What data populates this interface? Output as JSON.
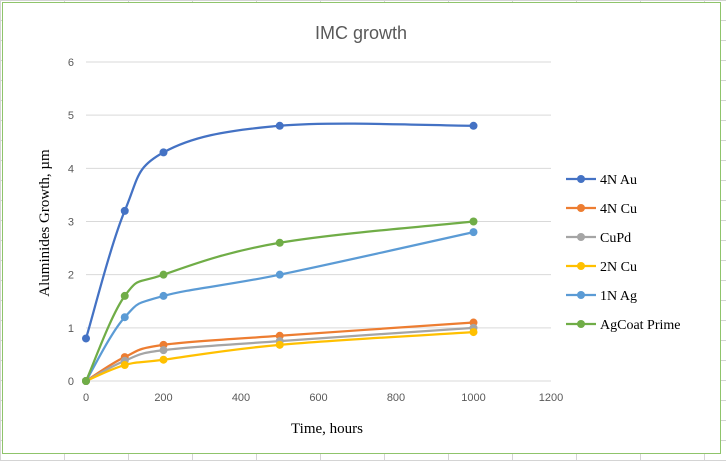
{
  "chart_data": {
    "type": "line",
    "title": "IMC growth",
    "xlabel": "Time, hours",
    "ylabel": "Aluminides Growth, µm",
    "xlim": [
      0,
      1200
    ],
    "ylim": [
      0,
      6
    ],
    "x_ticks": [
      0,
      200,
      400,
      600,
      800,
      1000,
      1200
    ],
    "y_ticks": [
      0,
      1,
      2,
      3,
      4,
      5,
      6
    ],
    "grid": "horizontal",
    "legend_position": "right",
    "smooth": true,
    "series": [
      {
        "name": "4N Au",
        "color": "#4472C4",
        "x": [
          0,
          100,
          200,
          500,
          1000
        ],
        "y": [
          0.8,
          3.2,
          4.3,
          4.8,
          4.8
        ]
      },
      {
        "name": "4N Cu",
        "color": "#ED7D31",
        "x": [
          0,
          100,
          200,
          500,
          1000
        ],
        "y": [
          0.0,
          0.45,
          0.68,
          0.85,
          1.1
        ]
      },
      {
        "name": "CuPd",
        "color": "#A5A5A5",
        "x": [
          0,
          100,
          200,
          500,
          1000
        ],
        "y": [
          0.0,
          0.38,
          0.58,
          0.75,
          1.0
        ]
      },
      {
        "name": "2N Cu",
        "color": "#FFC000",
        "x": [
          0,
          100,
          200,
          500,
          1000
        ],
        "y": [
          0.0,
          0.3,
          0.4,
          0.68,
          0.92
        ]
      },
      {
        "name": "1N Ag",
        "color": "#5B9BD5",
        "x": [
          0,
          100,
          200,
          500,
          1000
        ],
        "y": [
          0.0,
          1.2,
          1.6,
          2.0,
          2.8
        ]
      },
      {
        "name": "AgCoat Prime",
        "color": "#70AD47",
        "x": [
          0,
          100,
          200,
          500,
          1000
        ],
        "y": [
          0.0,
          1.6,
          2.0,
          2.6,
          3.0
        ]
      }
    ]
  }
}
